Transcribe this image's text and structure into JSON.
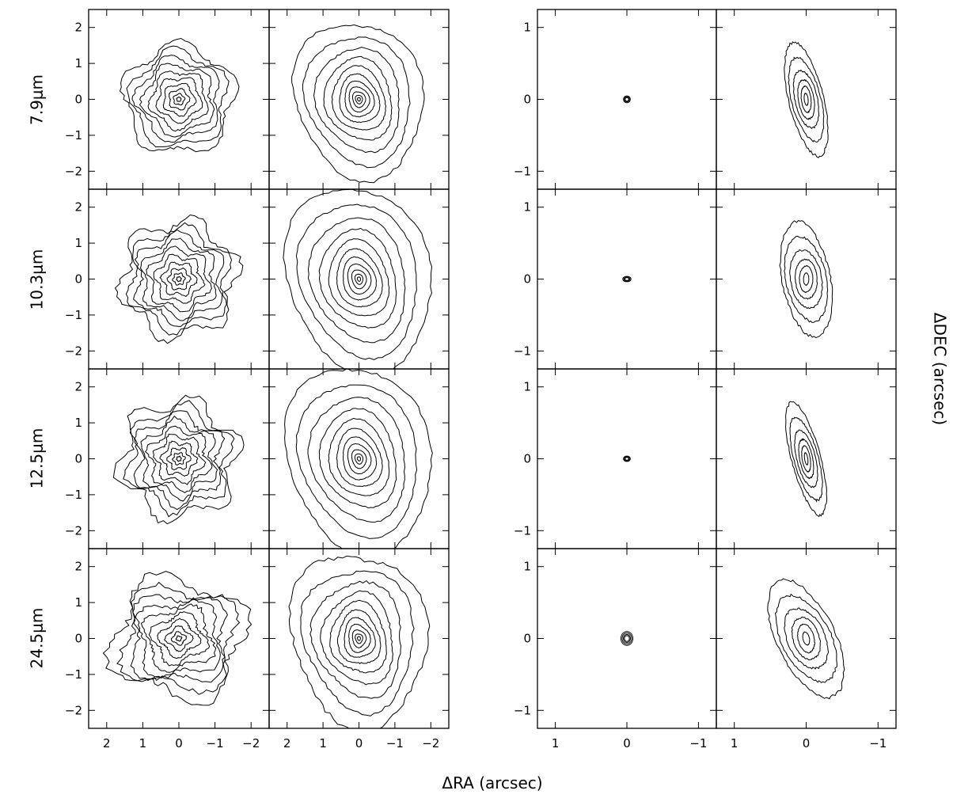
{
  "chart_data": {
    "type": "contour",
    "figure_xlabel": "ΔRA (arcsec)",
    "figure_ylabel": "ΔDEC (arcsec)",
    "rows": [
      {
        "label": "7.9μm"
      },
      {
        "label": "10.3μm"
      },
      {
        "label": "12.5μm"
      },
      {
        "label": "24.5μm"
      }
    ],
    "left_block": {
      "xlim": [
        2.5,
        -2.5
      ],
      "ylim": [
        -2.5,
        2.5
      ],
      "xticks": [
        2,
        1,
        0,
        -1,
        -2
      ],
      "xtick_labels": [
        "2",
        "1",
        "0",
        "−1",
        "−2"
      ],
      "yticks": [
        2,
        1,
        0,
        -1,
        -2
      ],
      "ytick_labels": [
        "2",
        "1",
        "0",
        "−1",
        "−2"
      ]
    },
    "right_block": {
      "xlim": [
        1.25,
        -1.25
      ],
      "ylim": [
        -1.25,
        1.25
      ],
      "xticks": [
        1,
        0,
        -1
      ],
      "xtick_labels": [
        "1",
        "0",
        "−1"
      ],
      "yticks": [
        1,
        0,
        -1
      ],
      "ytick_labels": [
        "1",
        "0",
        "−1"
      ]
    },
    "panels": [
      {
        "row": 0,
        "col": 0,
        "levels": [
          0.12,
          0.3,
          0.55,
          0.85,
          1.2,
          1.55,
          1.9,
          2.25,
          2.6,
          3.0
        ],
        "sx": 1.0,
        "sy": 1.0,
        "rot": 0,
        "roughness": 0.12,
        "lobes": 5
      },
      {
        "row": 0,
        "col": 1,
        "levels": [
          0.05,
          0.12,
          0.22,
          0.35,
          0.5,
          0.68,
          0.9,
          1.15,
          1.45,
          1.8,
          2.2
        ],
        "sx": 1.6,
        "sy": 2.0,
        "rot": 15,
        "roughness": 0.06,
        "lobes": 3
      },
      {
        "row": 0,
        "col": 2,
        "levels": [
          1.0,
          1.4,
          1.9
        ],
        "sx": 0.05,
        "sy": 0.05,
        "rot": 0,
        "roughness": 0.0,
        "lobes": 0
      },
      {
        "row": 0,
        "col": 3,
        "levels": [
          0.3,
          0.7,
          1.1,
          1.6,
          2.2,
          2.8
        ],
        "sx": 0.18,
        "sy": 0.55,
        "rot": 10,
        "roughness": 0.1,
        "lobes": 2
      },
      {
        "row": 1,
        "col": 0,
        "levels": [
          0.12,
          0.3,
          0.55,
          0.85,
          1.2,
          1.55,
          1.9,
          2.25,
          2.6,
          3.0
        ],
        "sx": 1.05,
        "sy": 1.05,
        "rot": 0,
        "roughness": 0.14,
        "lobes": 6
      },
      {
        "row": 1,
        "col": 1,
        "levels": [
          0.05,
          0.12,
          0.22,
          0.35,
          0.5,
          0.68,
          0.9,
          1.15,
          1.45,
          1.8,
          2.2
        ],
        "sx": 1.8,
        "sy": 2.4,
        "rot": 15,
        "roughness": 0.05,
        "lobes": 3
      },
      {
        "row": 1,
        "col": 2,
        "levels": [
          1.0,
          1.4,
          1.9
        ],
        "sx": 0.06,
        "sy": 0.04,
        "rot": 0,
        "roughness": 0.0,
        "lobes": 0
      },
      {
        "row": 1,
        "col": 3,
        "levels": [
          0.3,
          0.7,
          1.1,
          1.6,
          2.2,
          2.8
        ],
        "sx": 0.25,
        "sy": 0.55,
        "rot": 5,
        "roughness": 0.1,
        "lobes": 2
      },
      {
        "row": 2,
        "col": 0,
        "levels": [
          0.12,
          0.3,
          0.55,
          0.85,
          1.2,
          1.55,
          1.9,
          2.25,
          2.6,
          3.0
        ],
        "sx": 1.05,
        "sy": 1.05,
        "rot": 0,
        "roughness": 0.16,
        "lobes": 6
      },
      {
        "row": 2,
        "col": 1,
        "levels": [
          0.05,
          0.12,
          0.22,
          0.35,
          0.5,
          0.68,
          0.9,
          1.15,
          1.45,
          1.8,
          2.2
        ],
        "sx": 1.8,
        "sy": 2.4,
        "rot": 15,
        "roughness": 0.05,
        "lobes": 3
      },
      {
        "row": 2,
        "col": 2,
        "levels": [
          1.0,
          1.4,
          1.9
        ],
        "sx": 0.05,
        "sy": 0.04,
        "rot": 0,
        "roughness": 0.0,
        "lobes": 0
      },
      {
        "row": 2,
        "col": 3,
        "levels": [
          0.3,
          0.7,
          1.1,
          1.6,
          2.2,
          2.8
        ],
        "sx": 0.15,
        "sy": 0.55,
        "rot": 12,
        "roughness": 0.1,
        "lobes": 2
      },
      {
        "row": 3,
        "col": 0,
        "levels": [
          0.12,
          0.3,
          0.55,
          0.85,
          1.2,
          1.55,
          1.9,
          2.25,
          2.6,
          3.0
        ],
        "sx": 1.2,
        "sy": 1.1,
        "rot": 0,
        "roughness": 0.18,
        "lobes": 4
      },
      {
        "row": 3,
        "col": 1,
        "levels": [
          0.05,
          0.12,
          0.22,
          0.35,
          0.5,
          0.68,
          0.9,
          1.15,
          1.45,
          1.8,
          2.2
        ],
        "sx": 1.7,
        "sy": 2.2,
        "rot": 10,
        "roughness": 0.08,
        "lobes": 3
      },
      {
        "row": 3,
        "col": 2,
        "levels": [
          1.0,
          1.4,
          1.9,
          2.4
        ],
        "sx": 0.07,
        "sy": 0.08,
        "rot": 0,
        "roughness": 0.0,
        "lobes": 0
      },
      {
        "row": 3,
        "col": 3,
        "levels": [
          0.3,
          0.7,
          1.1,
          1.6,
          2.2,
          2.8
        ],
        "sx": 0.3,
        "sy": 0.6,
        "rot": 20,
        "roughness": 0.1,
        "lobes": 2
      }
    ]
  }
}
